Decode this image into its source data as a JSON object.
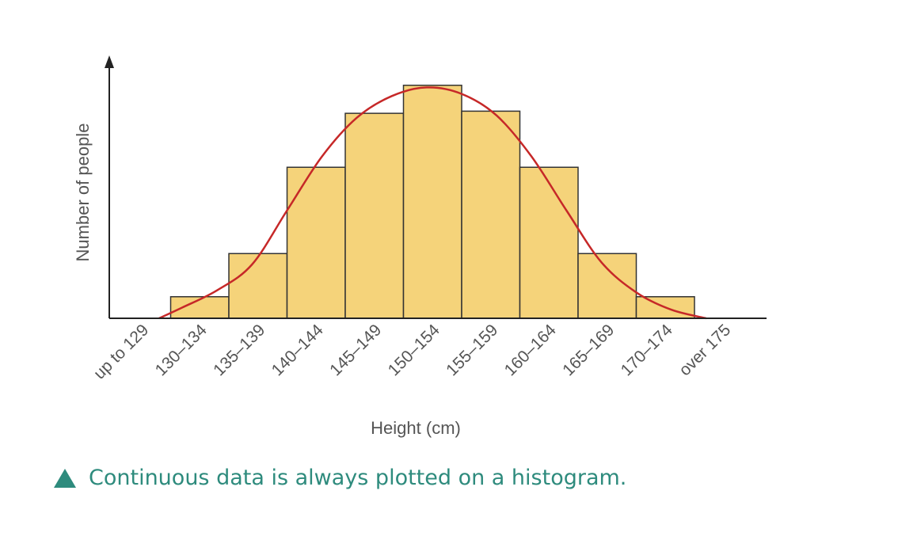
{
  "chart_data": {
    "type": "bar",
    "xlabel": "Height (cm)",
    "ylabel": "Number of people",
    "categories": [
      "up to 129",
      "130–134",
      "135–139",
      "140–144",
      "145–149",
      "150–154",
      "155–159",
      "160–164",
      "165–169",
      "170–174",
      "over 175"
    ],
    "values": [
      0,
      1,
      3,
      7,
      9.5,
      10.8,
      9.6,
      7,
      3,
      1,
      0
    ],
    "ylim": [
      0,
      12
    ],
    "grid": false,
    "bar_color": "#f5d37a",
    "curve_color": "#c62828",
    "curve": {
      "type": "normal-fit",
      "x": [
        129,
        131,
        134,
        137,
        140,
        143,
        146,
        149,
        152,
        155,
        158,
        161,
        164,
        167,
        170,
        173,
        176
      ],
      "y": [
        0,
        0.5,
        1.3,
        2.5,
        5.0,
        7.5,
        9.3,
        10.3,
        10.7,
        10.4,
        9.4,
        7.5,
        5.0,
        2.6,
        1.2,
        0.4,
        0
      ]
    }
  },
  "caption": {
    "text": "Continuous data is always plotted on a histogram.",
    "icon": "triangle-icon",
    "color": "#2e8b7d"
  }
}
